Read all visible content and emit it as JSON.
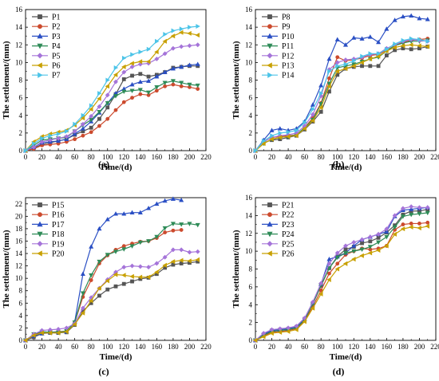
{
  "chart_data": [
    {
      "type": "line",
      "caption": "(a)",
      "xlabel": "Time/(d)",
      "ylabel": "The settlement/(mm)",
      "xlim": [
        0,
        220
      ],
      "ylim": [
        0,
        16
      ],
      "xticks": [
        0,
        20,
        40,
        60,
        80,
        100,
        120,
        140,
        160,
        180,
        200,
        220
      ],
      "yticks": [
        0,
        2,
        4,
        6,
        8,
        10,
        12,
        14,
        16
      ],
      "legend_position": "top-left",
      "x": [
        0,
        10,
        20,
        30,
        40,
        50,
        60,
        70,
        80,
        90,
        100,
        110,
        120,
        130,
        140,
        150,
        160,
        170,
        180,
        190,
        200,
        210
      ],
      "series": [
        {
          "name": "P1",
          "color": "#555555",
          "marker": "square",
          "values": [
            0,
            0.3,
            0.7,
            0.9,
            1.1,
            1.3,
            1.8,
            2.2,
            2.6,
            3.6,
            4.9,
            6.4,
            8.1,
            8.5,
            8.7,
            8.4,
            8.6,
            8.9,
            9.4,
            9.5,
            9.6,
            9.6
          ]
        },
        {
          "name": "P2",
          "color": "#cc4a2d",
          "marker": "circle",
          "values": [
            0,
            0.2,
            0.6,
            0.7,
            0.8,
            1.0,
            1.3,
            1.7,
            2.1,
            2.8,
            3.6,
            4.6,
            5.5,
            6.0,
            6.4,
            6.3,
            6.8,
            7.3,
            7.5,
            7.3,
            7.2,
            7.0
          ]
        },
        {
          "name": "P3",
          "color": "#2a4fc4",
          "marker": "triangle",
          "values": [
            0,
            0.4,
            0.9,
            1.0,
            1.1,
            1.3,
            1.9,
            2.5,
            3.3,
            4.3,
            5.4,
            6.5,
            7.0,
            7.5,
            7.8,
            7.9,
            8.4,
            8.9,
            9.3,
            9.5,
            9.7,
            9.8
          ]
        },
        {
          "name": "P4",
          "color": "#2e8b57",
          "marker": "triangle-down",
          "values": [
            0,
            0.6,
            1.2,
            1.3,
            1.4,
            1.5,
            2.2,
            2.9,
            3.5,
            4.4,
            5.4,
            6.2,
            6.7,
            6.8,
            6.9,
            6.6,
            7.2,
            7.7,
            7.9,
            7.7,
            7.5,
            7.4
          ]
        },
        {
          "name": "P5",
          "color": "#a574d9",
          "marker": "diamond",
          "values": [
            0,
            0.4,
            1.0,
            1.2,
            1.4,
            1.6,
            2.2,
            3.0,
            3.9,
            5.0,
            6.3,
            7.8,
            8.9,
            9.5,
            9.8,
            9.9,
            10.4,
            11.0,
            11.6,
            11.8,
            11.9,
            12.0
          ]
        },
        {
          "name": "P6",
          "color": "#c8a000",
          "marker": "triangle-left",
          "values": [
            0,
            1.0,
            1.6,
            1.9,
            2.1,
            2.3,
            2.9,
            3.7,
            4.7,
            5.9,
            7.3,
            8.6,
            9.5,
            9.9,
            10.1,
            10.1,
            11.2,
            12.4,
            13.0,
            13.4,
            13.3,
            13.1
          ]
        },
        {
          "name": "P7",
          "color": "#4cc4e8",
          "marker": "triangle-right",
          "values": [
            0,
            0.8,
            1.4,
            1.7,
            1.9,
            2.2,
            3.0,
            4.0,
            5.1,
            6.5,
            8.0,
            9.4,
            10.5,
            10.9,
            11.2,
            11.5,
            12.4,
            13.2,
            13.6,
            13.8,
            14.0,
            14.1
          ]
        }
      ]
    },
    {
      "type": "line",
      "caption": "(b)",
      "xlabel": "Time/(d)",
      "ylabel": "The settlement/(mm)",
      "xlim": [
        0,
        220
      ],
      "ylim": [
        0,
        16
      ],
      "xticks": [
        0,
        20,
        40,
        60,
        80,
        100,
        120,
        140,
        160,
        180,
        200,
        220
      ],
      "yticks": [
        0,
        2,
        4,
        6,
        8,
        10,
        12,
        14,
        16
      ],
      "legend_position": "top-left",
      "x": [
        0,
        10,
        20,
        30,
        40,
        50,
        60,
        70,
        80,
        90,
        100,
        110,
        120,
        130,
        140,
        150,
        160,
        170,
        180,
        190,
        200,
        210
      ],
      "series": [
        {
          "name": "P8",
          "color": "#555555",
          "marker": "square",
          "values": [
            0,
            0.9,
            1.2,
            1.3,
            1.5,
            1.7,
            2.4,
            3.3,
            4.4,
            6.7,
            8.6,
            9.3,
            9.5,
            9.6,
            9.6,
            9.6,
            10.8,
            11.4,
            11.6,
            11.5,
            11.6,
            11.8
          ]
        },
        {
          "name": "P9",
          "color": "#cc4a2d",
          "marker": "circle",
          "values": [
            0,
            1.0,
            1.5,
            1.6,
            1.7,
            1.8,
            2.6,
            3.7,
            5.4,
            8.2,
            10.6,
            10.2,
            10.3,
            10.5,
            10.8,
            10.9,
            11.4,
            11.9,
            12.3,
            12.5,
            12.6,
            12.7
          ]
        },
        {
          "name": "P10",
          "color": "#2a4fc4",
          "marker": "triangle",
          "values": [
            0,
            1.2,
            2.3,
            2.5,
            2.3,
            2.5,
            3.3,
            5.2,
            7.4,
            10.4,
            12.6,
            12.0,
            12.8,
            12.7,
            12.9,
            12.3,
            13.8,
            14.8,
            15.2,
            15.3,
            15.0,
            14.9
          ]
        },
        {
          "name": "P11",
          "color": "#2e8b57",
          "marker": "triangle-down",
          "values": [
            0,
            0.8,
            1.3,
            1.5,
            1.6,
            1.8,
            2.6,
            3.5,
            5.3,
            7.6,
            9.4,
            9.6,
            9.8,
            10.1,
            10.4,
            10.6,
            11.3,
            11.9,
            12.2,
            12.4,
            12.4,
            12.5
          ]
        },
        {
          "name": "P12",
          "color": "#a574d9",
          "marker": "diamond",
          "values": [
            0,
            1.0,
            1.5,
            1.7,
            1.8,
            2.0,
            2.8,
            4.1,
            6.2,
            9.2,
            10.0,
            10.3,
            10.4,
            10.6,
            10.9,
            11.0,
            11.6,
            12.0,
            12.4,
            12.6,
            12.5,
            12.4
          ]
        },
        {
          "name": "P13",
          "color": "#c8a000",
          "marker": "triangle-left",
          "values": [
            0,
            0.8,
            1.3,
            1.5,
            1.6,
            1.7,
            2.5,
            3.4,
            4.9,
            7.3,
            9.0,
            9.3,
            9.6,
            10.0,
            10.4,
            10.7,
            11.3,
            11.7,
            11.9,
            12.0,
            11.9,
            11.8
          ]
        },
        {
          "name": "P14",
          "color": "#4cc4e8",
          "marker": "triangle-right",
          "values": [
            0,
            1.1,
            1.7,
            2.0,
            2.1,
            2.3,
            3.2,
            4.7,
            6.5,
            9.0,
            9.6,
            9.8,
            10.2,
            10.7,
            11.0,
            11.0,
            11.5,
            12.1,
            12.5,
            12.7,
            12.6,
            12.4
          ]
        }
      ]
    },
    {
      "type": "line",
      "caption": "(c)",
      "xlabel": "Time/(d)",
      "ylabel": "The settlement/(mm)",
      "xlim": [
        0,
        220
      ],
      "ylim": [
        0,
        23
      ],
      "xticks": [
        0,
        20,
        40,
        60,
        80,
        100,
        120,
        140,
        160,
        180,
        200,
        220
      ],
      "yticks": [
        0,
        2,
        4,
        6,
        8,
        10,
        12,
        14,
        16,
        18,
        20,
        22
      ],
      "legend_position": "top-left",
      "x": [
        0,
        10,
        20,
        30,
        40,
        50,
        60,
        70,
        80,
        90,
        100,
        110,
        120,
        130,
        140,
        150,
        160,
        170,
        180,
        190,
        200,
        210
      ],
      "series": [
        {
          "name": "P15",
          "color": "#555555",
          "marker": "square",
          "values": [
            0,
            0.5,
            1.1,
            1.2,
            1.2,
            1.3,
            2.5,
            4.7,
            6.0,
            7.2,
            8.2,
            8.7,
            9.1,
            9.5,
            9.9,
            10.1,
            10.7,
            11.7,
            12.2,
            12.4,
            12.5,
            12.7
          ]
        },
        {
          "name": "P16",
          "color": "#cc4a2d",
          "marker": "circle",
          "values": [
            0,
            0.9,
            1.3,
            1.3,
            1.4,
            1.5,
            2.9,
            7.0,
            9.7,
            12.4,
            13.7,
            14.6,
            15.2,
            15.6,
            15.9,
            16.0,
            16.5,
            17.4,
            17.7,
            17.8,
            null,
            null
          ]
        },
        {
          "name": "P17",
          "color": "#2a4fc4",
          "marker": "triangle",
          "values": [
            0,
            0.7,
            1.1,
            1.3,
            1.3,
            1.4,
            3.0,
            10.7,
            15.1,
            18.0,
            19.5,
            20.4,
            20.4,
            20.6,
            20.6,
            21.3,
            22.0,
            22.5,
            22.8,
            22.6,
            null,
            null
          ]
        },
        {
          "name": "P18",
          "color": "#2e8b57",
          "marker": "triangle-down",
          "values": [
            0,
            1.0,
            1.4,
            1.3,
            1.3,
            1.5,
            2.9,
            7.6,
            10.5,
            12.7,
            13.8,
            14.3,
            14.7,
            15.2,
            15.8,
            16.0,
            16.7,
            18.1,
            18.8,
            18.7,
            18.8,
            18.6
          ]
        },
        {
          "name": "P19",
          "color": "#a574d9",
          "marker": "diamond",
          "values": [
            0,
            1.0,
            1.6,
            1.7,
            1.8,
            2.0,
            2.7,
            5.2,
            6.9,
            8.4,
            9.8,
            11.0,
            11.8,
            12.0,
            11.9,
            11.8,
            12.4,
            13.4,
            14.6,
            14.6,
            14.2,
            14.3
          ]
        },
        {
          "name": "P20",
          "color": "#c8a000",
          "marker": "triangle-left",
          "values": [
            0,
            0.8,
            1.2,
            1.2,
            1.2,
            1.4,
            2.6,
            4.4,
            6.4,
            8.4,
            9.6,
            10.6,
            10.5,
            10.3,
            10.2,
            10.2,
            11.0,
            12.1,
            12.7,
            12.9,
            12.8,
            13.0
          ]
        }
      ]
    },
    {
      "type": "line",
      "caption": "(d)",
      "xlabel": "Time/(d)",
      "ylabel": "The settlement/(mm)",
      "xlim": [
        0,
        220
      ],
      "ylim": [
        0,
        16
      ],
      "xticks": [
        0,
        20,
        40,
        60,
        80,
        100,
        120,
        140,
        160,
        180,
        200,
        220
      ],
      "yticks": [
        0,
        2,
        4,
        6,
        8,
        10,
        12,
        14,
        16
      ],
      "legend_position": "top-left",
      "x": [
        0,
        10,
        20,
        30,
        40,
        50,
        60,
        70,
        80,
        90,
        100,
        110,
        120,
        130,
        140,
        150,
        160,
        170,
        180,
        190,
        200,
        210
      ],
      "series": [
        {
          "name": "P21",
          "color": "#555555",
          "marker": "square",
          "values": [
            0,
            0.6,
            1.1,
            1.2,
            1.3,
            1.5,
            2.4,
            4.1,
            6.1,
            8.1,
            9.4,
            10.2,
            10.5,
            10.9,
            11.1,
            11.5,
            12.1,
            12.9,
            14.1,
            14.5,
            14.5,
            14.7
          ]
        },
        {
          "name": "P22",
          "color": "#cc4a2d",
          "marker": "circle",
          "values": [
            0,
            0.5,
            0.9,
            1.0,
            1.1,
            1.3,
            2.2,
            3.8,
            5.6,
            7.5,
            8.6,
            9.6,
            10.0,
            10.3,
            10.2,
            10.3,
            10.6,
            12.4,
            13.0,
            13.1,
            13.1,
            13.2
          ]
        },
        {
          "name": "P23",
          "color": "#2a4fc4",
          "marker": "triangle",
          "values": [
            0,
            0.7,
            1.1,
            1.2,
            1.3,
            1.5,
            2.4,
            4.2,
            6.3,
            9.1,
            9.4,
            9.8,
            10.6,
            11.3,
            11.6,
            11.9,
            12.2,
            13.9,
            14.6,
            14.7,
            14.8,
            14.9
          ]
        },
        {
          "name": "P24",
          "color": "#2e8b57",
          "marker": "triangle-down",
          "values": [
            0,
            0.6,
            1.0,
            1.1,
            1.2,
            1.4,
            2.3,
            4.1,
            6.2,
            8.1,
            9.3,
            9.8,
            10.0,
            10.2,
            10.5,
            11.0,
            11.6,
            12.7,
            13.9,
            14.1,
            14.2,
            14.3
          ]
        },
        {
          "name": "P25",
          "color": "#a574d9",
          "marker": "diamond",
          "values": [
            0,
            0.8,
            1.2,
            1.3,
            1.4,
            1.6,
            2.5,
            4.3,
            6.4,
            8.6,
            9.8,
            10.6,
            11.0,
            11.3,
            11.6,
            11.9,
            12.5,
            14.0,
            14.8,
            15.0,
            14.9,
            14.9
          ]
        },
        {
          "name": "P26",
          "color": "#c8a000",
          "marker": "triangle-left",
          "values": [
            0,
            0.4,
            0.8,
            0.9,
            1.0,
            1.2,
            2.1,
            3.6,
            5.2,
            6.8,
            8.0,
            8.6,
            9.1,
            9.5,
            9.8,
            10.1,
            10.6,
            11.9,
            12.5,
            12.7,
            12.6,
            12.8
          ]
        }
      ]
    }
  ]
}
